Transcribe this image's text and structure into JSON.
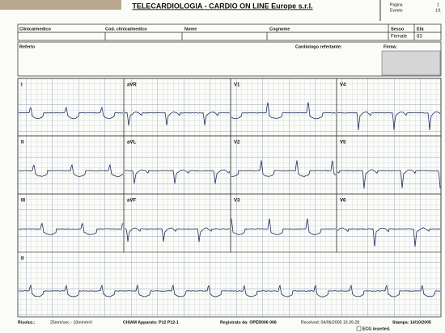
{
  "header": {
    "title": "TELECARDIOLOGIA - CARDIO ON LINE Europe s.r.l.",
    "page_label": "Pagina",
    "page_value": "1",
    "event_label": "Evento",
    "event_value": "1/1"
  },
  "patient": {
    "fields": [
      "Clinica/medico",
      "Cod. clinica/medico",
      "Nome",
      "Cognome",
      "Sesso",
      "Età"
    ],
    "sex": "Female",
    "age": "83"
  },
  "report": {
    "label": "Referto",
    "cardiologist": "Cardiologo refertante:",
    "signature": "Firma:"
  },
  "leads": [
    "I",
    "aVR",
    "V1",
    "V4",
    "II",
    "aVL",
    "V2",
    "V5",
    "III",
    "aVF",
    "V3",
    "V6",
    "II"
  ],
  "footer": {
    "resolution_label": "Risoluz.:",
    "resolution": "25mm/sec - 10mm/mV",
    "device": "CHIAM Apparato: P12 P12-1",
    "recorded_by": "Registrato da: OPER006 006",
    "received": "Received: 04/06/2005 19.39.28",
    "printed": "Stampa: 14/10/2005",
    "inserted": "ECG inserted."
  }
}
